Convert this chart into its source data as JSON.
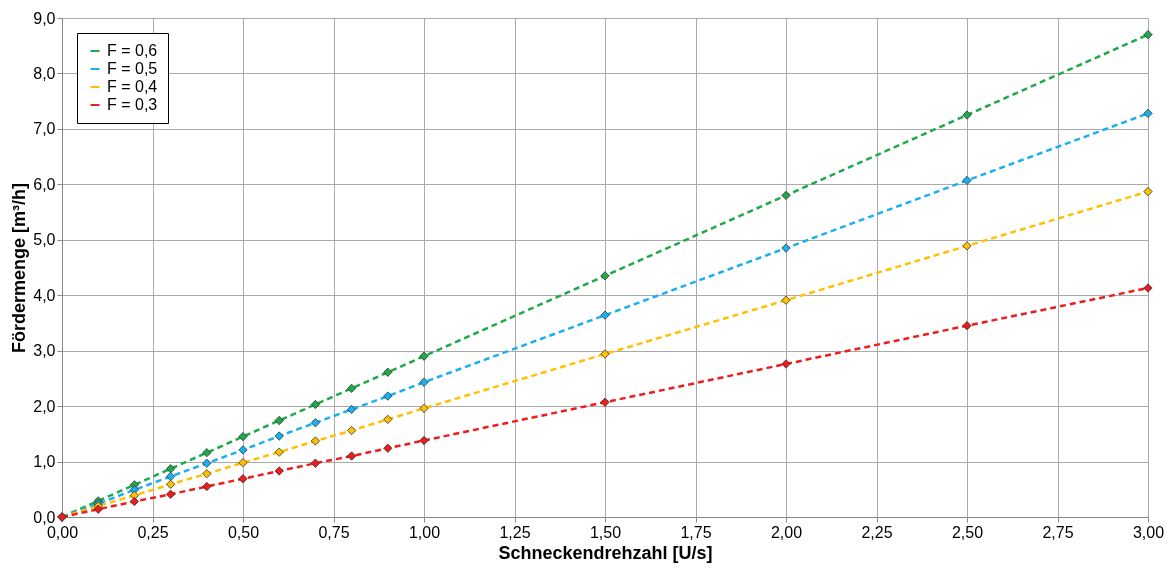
{
  "chart_data": {
    "type": "line",
    "xlabel": "Schneckendrehzahl [U/s]",
    "ylabel": "Fördermenge [m³/h]",
    "x": [
      0,
      0.1,
      0.2,
      0.3,
      0.4,
      0.5,
      0.6,
      0.7,
      0.8,
      0.9,
      1.0,
      1.5,
      2.0,
      2.5,
      3.0
    ],
    "series": [
      {
        "name": "F = 0,6",
        "color": "#1fa94a",
        "values": [
          0,
          0.29,
          0.58,
          0.87,
          1.16,
          1.45,
          1.74,
          2.03,
          2.32,
          2.61,
          2.9,
          4.35,
          5.8,
          7.25,
          8.7
        ]
      },
      {
        "name": "F = 0,5",
        "color": "#1ab0f0",
        "values": [
          0,
          0.24,
          0.49,
          0.73,
          0.97,
          1.21,
          1.46,
          1.7,
          1.94,
          2.18,
          2.43,
          3.64,
          4.85,
          6.07,
          7.28
        ]
      },
      {
        "name": "F = 0,4",
        "color": "#ffc000",
        "values": [
          0,
          0.2,
          0.39,
          0.59,
          0.78,
          0.98,
          1.17,
          1.37,
          1.56,
          1.76,
          1.96,
          2.94,
          3.91,
          4.89,
          5.87
        ]
      },
      {
        "name": "F = 0,3",
        "color": "#ee1c1c",
        "values": [
          0,
          0.14,
          0.28,
          0.41,
          0.55,
          0.69,
          0.83,
          0.97,
          1.1,
          1.24,
          1.38,
          2.07,
          2.76,
          3.45,
          4.13
        ]
      }
    ],
    "xlim": [
      0,
      3
    ],
    "xticks": [
      {
        "value": 0,
        "label": "0,00"
      },
      {
        "value": 0.25,
        "label": "0,25"
      },
      {
        "value": 0.5,
        "label": "0,50"
      },
      {
        "value": 0.75,
        "label": "0,75"
      },
      {
        "value": 1,
        "label": "1,00"
      },
      {
        "value": 1.25,
        "label": "1,25"
      },
      {
        "value": 1.5,
        "label": "1,50"
      },
      {
        "value": 1.75,
        "label": "1,75"
      },
      {
        "value": 2,
        "label": "2,00"
      },
      {
        "value": 2.25,
        "label": "2,25"
      },
      {
        "value": 2.5,
        "label": "2,50"
      },
      {
        "value": 2.75,
        "label": "2,75"
      },
      {
        "value": 3,
        "label": "3,00"
      }
    ],
    "ylim": [
      0,
      9
    ],
    "yticks": [
      {
        "value": 0,
        "label": "0,0"
      },
      {
        "value": 1,
        "label": "1,0"
      },
      {
        "value": 2,
        "label": "2,0"
      },
      {
        "value": 3,
        "label": "3,0"
      },
      {
        "value": 4,
        "label": "4,0"
      },
      {
        "value": 5,
        "label": "5,0"
      },
      {
        "value": 6,
        "label": "6,0"
      },
      {
        "value": 7,
        "label": "7,0"
      },
      {
        "value": 8,
        "label": "8,0"
      },
      {
        "value": 9,
        "label": "9,0"
      }
    ],
    "grid": true,
    "legend": "top left",
    "marker": "diamond",
    "line_style": "dashed"
  }
}
